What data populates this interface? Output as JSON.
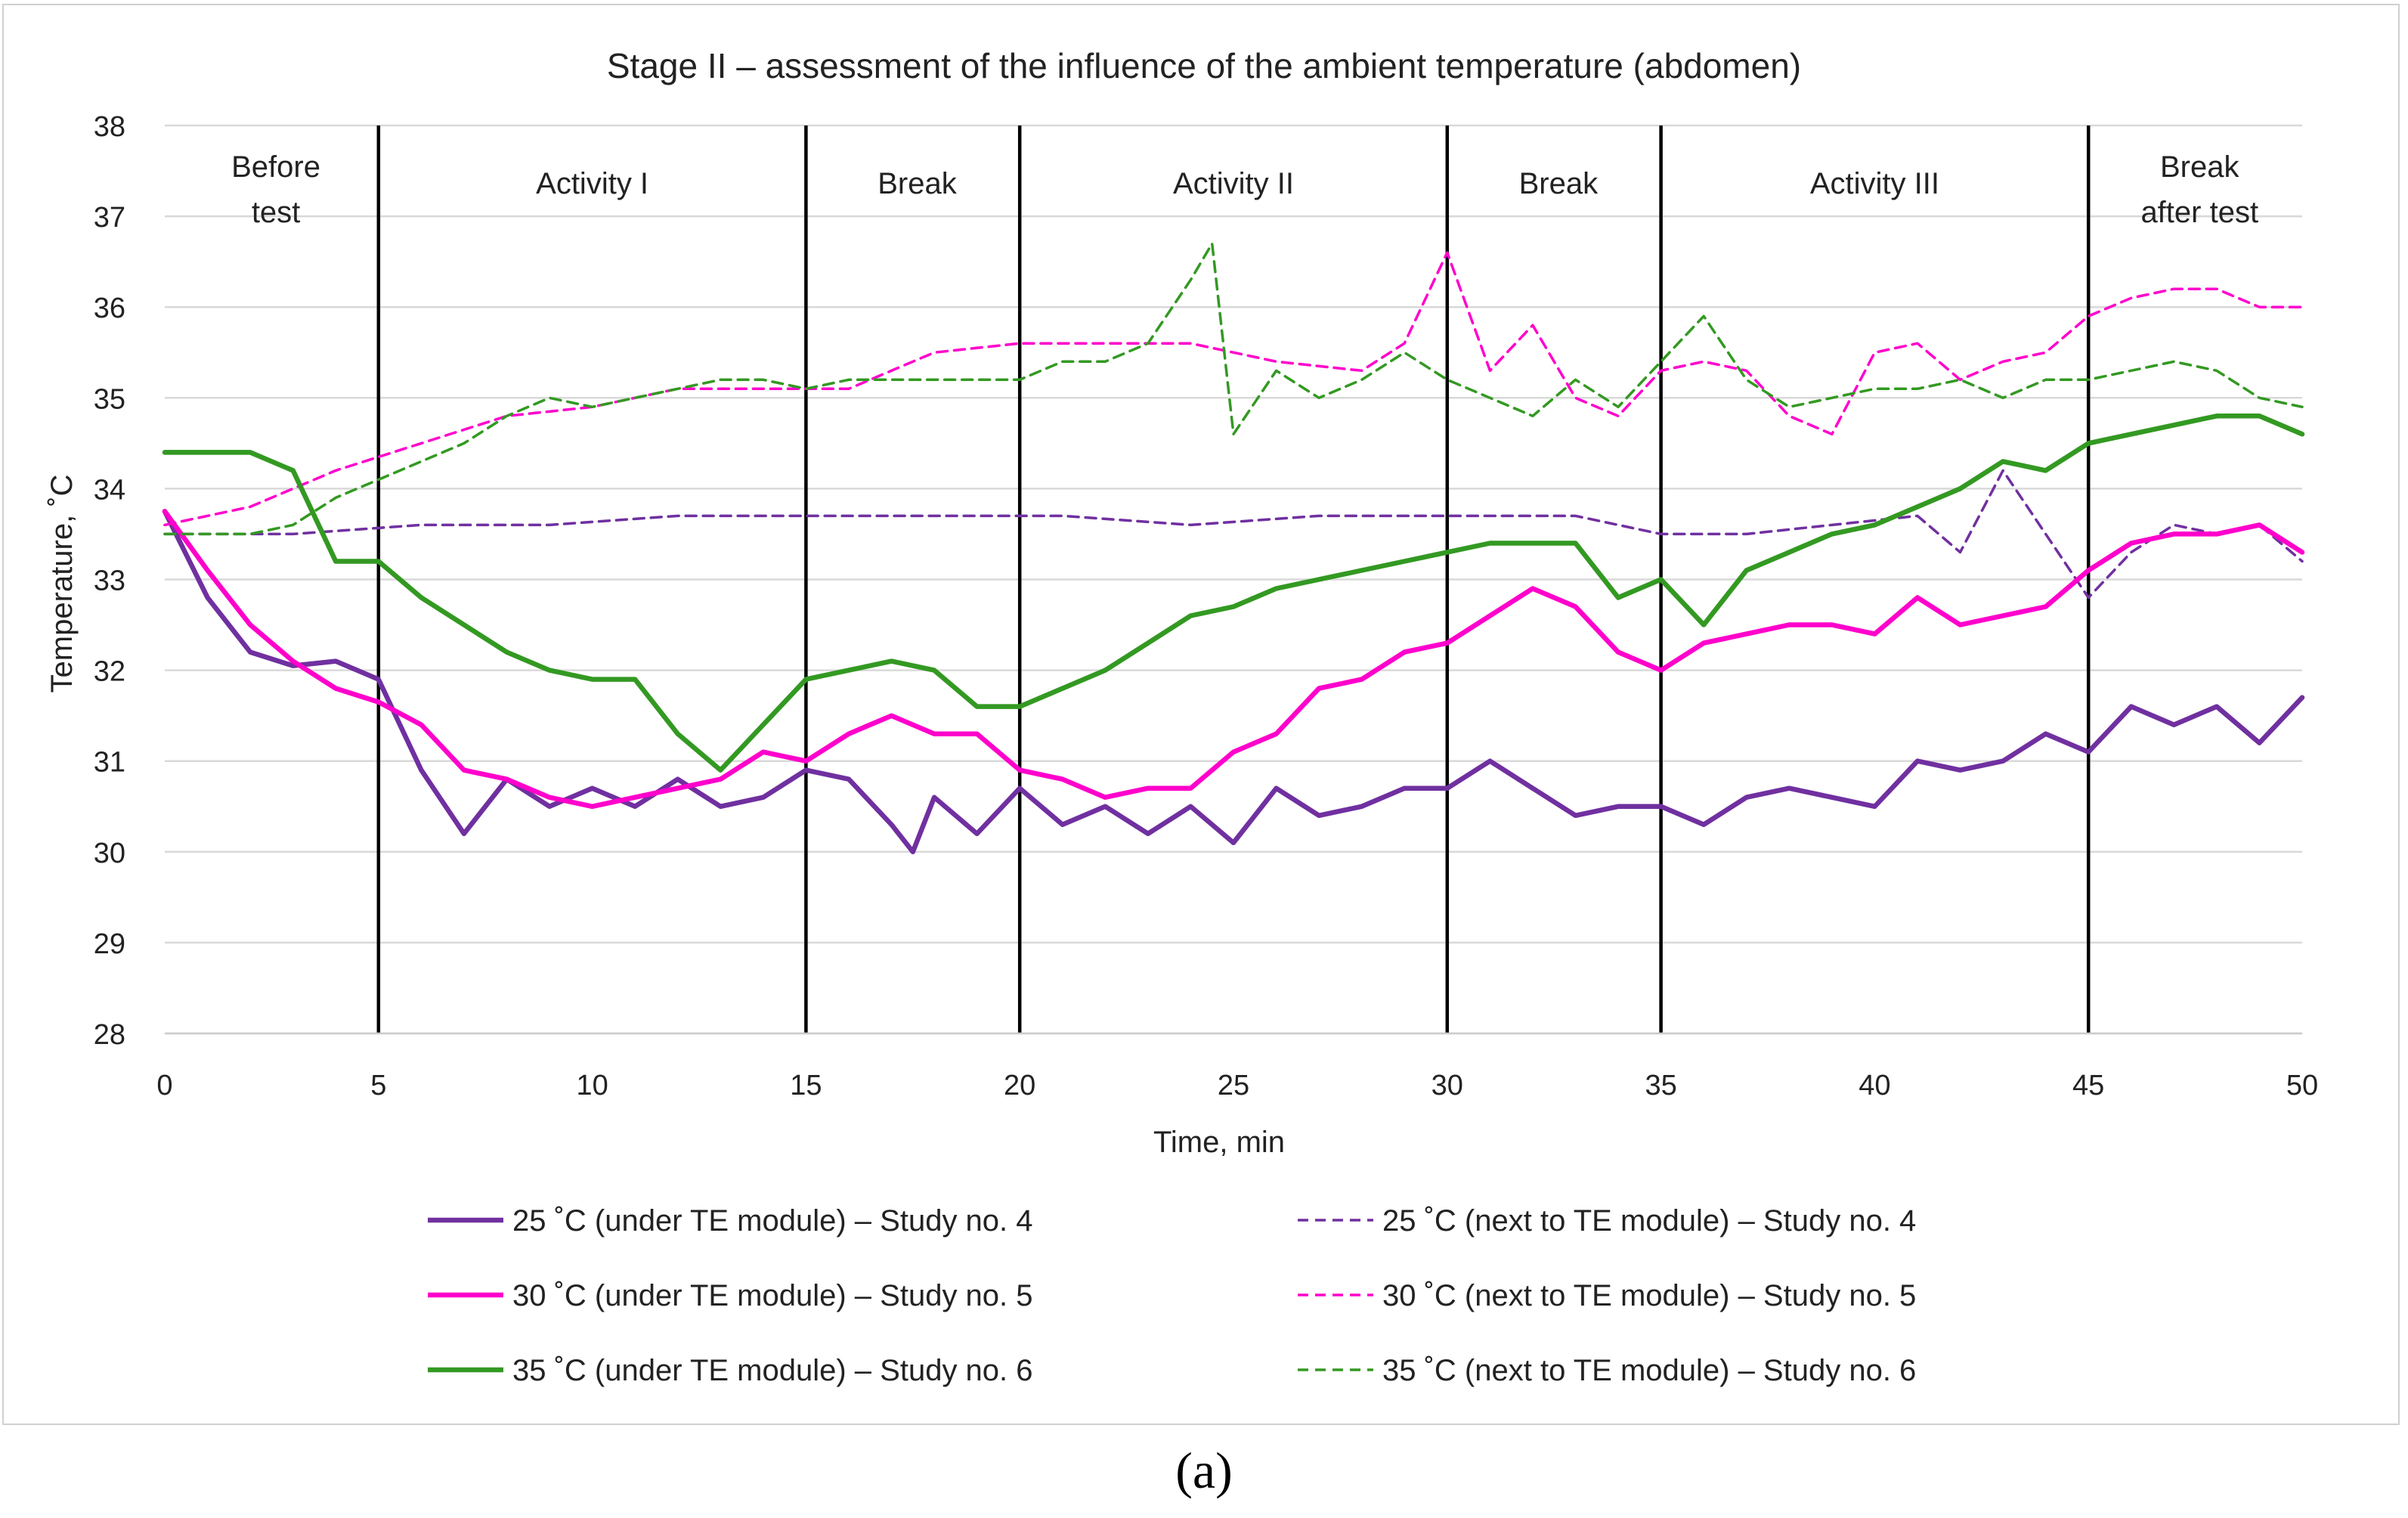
{
  "chart_data": {
    "type": "line",
    "title": "Stage II – assessment of the influence of the ambient temperature (abdomen)",
    "xlabel": "Time, min",
    "ylabel": "Temperature, ˚C",
    "xlim": [
      0,
      50
    ],
    "ylim": [
      28,
      38
    ],
    "xticks": [
      0,
      5,
      10,
      15,
      20,
      25,
      30,
      35,
      40,
      45,
      50
    ],
    "yticks": [
      28,
      29,
      30,
      31,
      32,
      33,
      34,
      35,
      36,
      37,
      38
    ],
    "grid": "horizontal",
    "legend_position": "bottom",
    "phase_boundaries": [
      5,
      15,
      20,
      30,
      35,
      45
    ],
    "phases": [
      {
        "lines": [
          "Before",
          "test"
        ],
        "x_center": 2.6
      },
      {
        "lines": [
          "Activity I"
        ],
        "x_center": 10
      },
      {
        "lines": [
          "Break"
        ],
        "x_center": 17.6
      },
      {
        "lines": [
          "Activity II"
        ],
        "x_center": 25
      },
      {
        "lines": [
          "Break"
        ],
        "x_center": 32.6
      },
      {
        "lines": [
          "Activity III"
        ],
        "x_center": 40
      },
      {
        "lines": [
          "Break",
          "after test"
        ],
        "x_center": 47.6
      }
    ],
    "series": [
      {
        "name": "25 ˚C (under TE module) – Study no. 4",
        "color": "#7030A0",
        "dashed": false,
        "points": [
          [
            0,
            33.75
          ],
          [
            1,
            32.8
          ],
          [
            2,
            32.2
          ],
          [
            3,
            32.05
          ],
          [
            4,
            32.1
          ],
          [
            5,
            31.9
          ],
          [
            6,
            30.9
          ],
          [
            7,
            30.2
          ],
          [
            8,
            30.8
          ],
          [
            9,
            30.5
          ],
          [
            10,
            30.7
          ],
          [
            11,
            30.5
          ],
          [
            12,
            30.8
          ],
          [
            13,
            30.5
          ],
          [
            14,
            30.6
          ],
          [
            15,
            30.9
          ],
          [
            16,
            30.8
          ],
          [
            17,
            30.3
          ],
          [
            17.5,
            30.0
          ],
          [
            18,
            30.6
          ],
          [
            19,
            30.2
          ],
          [
            20,
            30.7
          ],
          [
            21,
            30.3
          ],
          [
            22,
            30.5
          ],
          [
            23,
            30.2
          ],
          [
            24,
            30.5
          ],
          [
            25,
            30.1
          ],
          [
            26,
            30.7
          ],
          [
            27,
            30.4
          ],
          [
            28,
            30.5
          ],
          [
            29,
            30.7
          ],
          [
            30,
            30.7
          ],
          [
            31,
            31.0
          ],
          [
            32,
            30.7
          ],
          [
            33,
            30.4
          ],
          [
            34,
            30.5
          ],
          [
            35,
            30.5
          ],
          [
            36,
            30.3
          ],
          [
            37,
            30.6
          ],
          [
            38,
            30.7
          ],
          [
            39,
            30.6
          ],
          [
            40,
            30.5
          ],
          [
            41,
            31.0
          ],
          [
            42,
            30.9
          ],
          [
            43,
            31.0
          ],
          [
            44,
            31.3
          ],
          [
            45,
            31.1
          ],
          [
            46,
            31.6
          ],
          [
            47,
            31.4
          ],
          [
            48,
            31.6
          ],
          [
            49,
            31.2
          ],
          [
            50,
            31.7
          ]
        ]
      },
      {
        "name": "25 ˚C (next to TE module) – Study no. 4",
        "color": "#7030A0",
        "dashed": true,
        "points": [
          [
            0,
            33.5
          ],
          [
            3,
            33.5
          ],
          [
            6,
            33.6
          ],
          [
            9,
            33.6
          ],
          [
            12,
            33.7
          ],
          [
            15,
            33.7
          ],
          [
            18,
            33.7
          ],
          [
            21,
            33.7
          ],
          [
            24,
            33.6
          ],
          [
            27,
            33.7
          ],
          [
            30,
            33.7
          ],
          [
            33,
            33.7
          ],
          [
            35,
            33.5
          ],
          [
            37,
            33.5
          ],
          [
            39,
            33.6
          ],
          [
            41,
            33.7
          ],
          [
            42,
            33.3
          ],
          [
            43,
            34.2
          ],
          [
            44,
            33.5
          ],
          [
            45,
            32.8
          ],
          [
            46,
            33.3
          ],
          [
            47,
            33.6
          ],
          [
            48,
            33.5
          ],
          [
            49,
            33.6
          ],
          [
            50,
            33.2
          ]
        ]
      },
      {
        "name": "30 ˚C (under TE module) – Study no. 5",
        "color": "#FF00CC",
        "dashed": false,
        "points": [
          [
            0,
            33.75
          ],
          [
            1,
            33.1
          ],
          [
            2,
            32.5
          ],
          [
            3,
            32.1
          ],
          [
            4,
            31.8
          ],
          [
            5,
            31.65
          ],
          [
            6,
            31.4
          ],
          [
            7,
            30.9
          ],
          [
            8,
            30.8
          ],
          [
            9,
            30.6
          ],
          [
            10,
            30.5
          ],
          [
            11,
            30.6
          ],
          [
            12,
            30.7
          ],
          [
            13,
            30.8
          ],
          [
            14,
            31.1
          ],
          [
            15,
            31.0
          ],
          [
            16,
            31.3
          ],
          [
            17,
            31.5
          ],
          [
            18,
            31.3
          ],
          [
            19,
            31.3
          ],
          [
            20,
            30.9
          ],
          [
            21,
            30.8
          ],
          [
            22,
            30.6
          ],
          [
            23,
            30.7
          ],
          [
            24,
            30.7
          ],
          [
            25,
            31.1
          ],
          [
            26,
            31.3
          ],
          [
            27,
            31.8
          ],
          [
            28,
            31.9
          ],
          [
            29,
            32.2
          ],
          [
            30,
            32.3
          ],
          [
            31,
            32.6
          ],
          [
            32,
            32.9
          ],
          [
            33,
            32.7
          ],
          [
            34,
            32.2
          ],
          [
            35,
            32.0
          ],
          [
            36,
            32.3
          ],
          [
            37,
            32.4
          ],
          [
            38,
            32.5
          ],
          [
            39,
            32.5
          ],
          [
            40,
            32.4
          ],
          [
            41,
            32.8
          ],
          [
            42,
            32.5
          ],
          [
            43,
            32.6
          ],
          [
            44,
            32.7
          ],
          [
            45,
            33.1
          ],
          [
            46,
            33.4
          ],
          [
            47,
            33.5
          ],
          [
            48,
            33.5
          ],
          [
            49,
            33.6
          ],
          [
            50,
            33.3
          ]
        ]
      },
      {
        "name": "30 ˚C (next to TE module) – Study no. 5",
        "color": "#FF00CC",
        "dashed": true,
        "points": [
          [
            0,
            33.6
          ],
          [
            2,
            33.8
          ],
          [
            4,
            34.2
          ],
          [
            6,
            34.5
          ],
          [
            8,
            34.8
          ],
          [
            10,
            34.9
          ],
          [
            12,
            35.1
          ],
          [
            14,
            35.1
          ],
          [
            16,
            35.1
          ],
          [
            18,
            35.5
          ],
          [
            20,
            35.6
          ],
          [
            22,
            35.6
          ],
          [
            24,
            35.6
          ],
          [
            26,
            35.4
          ],
          [
            28,
            35.3
          ],
          [
            29,
            35.6
          ],
          [
            30,
            36.6
          ],
          [
            31,
            35.3
          ],
          [
            32,
            35.8
          ],
          [
            33,
            35.0
          ],
          [
            34,
            34.8
          ],
          [
            35,
            35.3
          ],
          [
            36,
            35.4
          ],
          [
            37,
            35.3
          ],
          [
            38,
            34.8
          ],
          [
            39,
            34.6
          ],
          [
            40,
            35.5
          ],
          [
            41,
            35.6
          ],
          [
            42,
            35.2
          ],
          [
            43,
            35.4
          ],
          [
            44,
            35.5
          ],
          [
            45,
            35.9
          ],
          [
            46,
            36.1
          ],
          [
            47,
            36.2
          ],
          [
            48,
            36.2
          ],
          [
            49,
            36.0
          ],
          [
            50,
            36.0
          ]
        ]
      },
      {
        "name": "35 ˚C (under TE module) – Study no. 6",
        "color": "#339922",
        "dashed": false,
        "points": [
          [
            0,
            34.4
          ],
          [
            1,
            34.4
          ],
          [
            2,
            34.4
          ],
          [
            3,
            34.2
          ],
          [
            4,
            33.2
          ],
          [
            5,
            33.2
          ],
          [
            6,
            32.8
          ],
          [
            7,
            32.5
          ],
          [
            8,
            32.2
          ],
          [
            9,
            32.0
          ],
          [
            10,
            31.9
          ],
          [
            11,
            31.9
          ],
          [
            12,
            31.3
          ],
          [
            13,
            30.9
          ],
          [
            14,
            31.4
          ],
          [
            15,
            31.9
          ],
          [
            16,
            32.0
          ],
          [
            17,
            32.1
          ],
          [
            18,
            32.0
          ],
          [
            19,
            31.6
          ],
          [
            20,
            31.6
          ],
          [
            21,
            31.8
          ],
          [
            22,
            32.0
          ],
          [
            23,
            32.3
          ],
          [
            24,
            32.6
          ],
          [
            25,
            32.7
          ],
          [
            26,
            32.9
          ],
          [
            27,
            33.0
          ],
          [
            28,
            33.1
          ],
          [
            29,
            33.2
          ],
          [
            30,
            33.3
          ],
          [
            31,
            33.4
          ],
          [
            32,
            33.4
          ],
          [
            33,
            33.4
          ],
          [
            34,
            32.8
          ],
          [
            35,
            33.0
          ],
          [
            36,
            32.5
          ],
          [
            37,
            33.1
          ],
          [
            38,
            33.3
          ],
          [
            39,
            33.5
          ],
          [
            40,
            33.6
          ],
          [
            41,
            33.8
          ],
          [
            42,
            34.0
          ],
          [
            43,
            34.3
          ],
          [
            44,
            34.2
          ],
          [
            45,
            34.5
          ],
          [
            46,
            34.6
          ],
          [
            47,
            34.7
          ],
          [
            48,
            34.8
          ],
          [
            49,
            34.8
          ],
          [
            50,
            34.6
          ]
        ]
      },
      {
        "name": "35 ˚C (next to TE module) – Study no. 6",
        "color": "#339922",
        "dashed": true,
        "points": [
          [
            0,
            33.5
          ],
          [
            2,
            33.5
          ],
          [
            3,
            33.6
          ],
          [
            4,
            33.9
          ],
          [
            5,
            34.1
          ],
          [
            6,
            34.3
          ],
          [
            7,
            34.5
          ],
          [
            8,
            34.8
          ],
          [
            9,
            35.0
          ],
          [
            10,
            34.9
          ],
          [
            11,
            35.0
          ],
          [
            12,
            35.1
          ],
          [
            13,
            35.2
          ],
          [
            14,
            35.2
          ],
          [
            15,
            35.1
          ],
          [
            16,
            35.2
          ],
          [
            17,
            35.2
          ],
          [
            18,
            35.2
          ],
          [
            19,
            35.2
          ],
          [
            20,
            35.2
          ],
          [
            21,
            35.4
          ],
          [
            22,
            35.4
          ],
          [
            23,
            35.6
          ],
          [
            24,
            36.3
          ],
          [
            24.5,
            36.7
          ],
          [
            25,
            34.6
          ],
          [
            26,
            35.3
          ],
          [
            27,
            35.0
          ],
          [
            28,
            35.2
          ],
          [
            29,
            35.5
          ],
          [
            30,
            35.2
          ],
          [
            31,
            35.0
          ],
          [
            32,
            34.8
          ],
          [
            33,
            35.2
          ],
          [
            34,
            34.9
          ],
          [
            35,
            35.4
          ],
          [
            36,
            35.9
          ],
          [
            37,
            35.2
          ],
          [
            38,
            34.9
          ],
          [
            39,
            35.0
          ],
          [
            40,
            35.1
          ],
          [
            41,
            35.1
          ],
          [
            42,
            35.2
          ],
          [
            43,
            35.0
          ],
          [
            44,
            35.2
          ],
          [
            45,
            35.2
          ],
          [
            46,
            35.3
          ],
          [
            47,
            35.4
          ],
          [
            48,
            35.3
          ],
          [
            49,
            35.0
          ],
          [
            50,
            34.9
          ]
        ]
      }
    ]
  },
  "caption": "(a)"
}
